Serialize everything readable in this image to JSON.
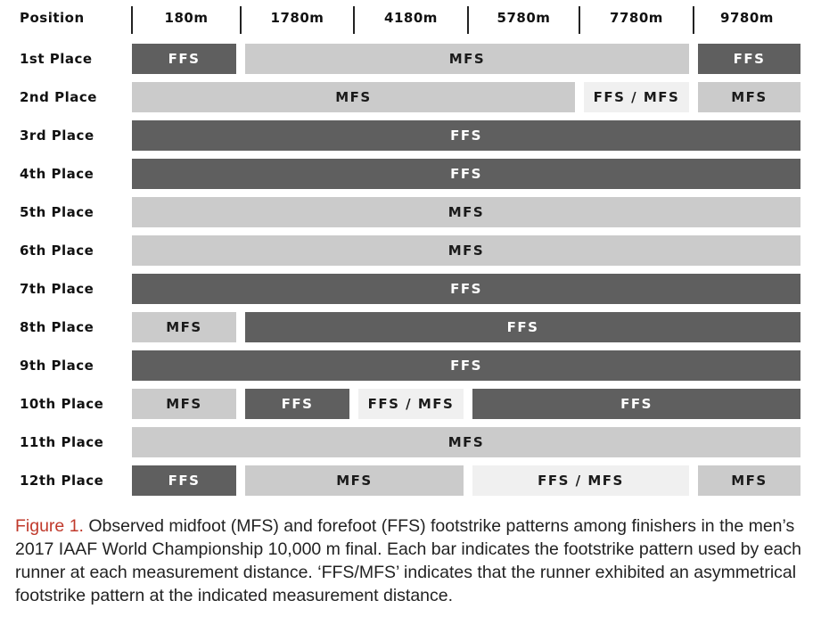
{
  "header": {
    "position_label": "Position",
    "distances": [
      "180m",
      "1780m",
      "4180m",
      "5780m",
      "7780m",
      "9780m"
    ]
  },
  "rows": [
    {
      "label": "1st Place",
      "segments": [
        {
          "text": "FFS",
          "kind": "FFS",
          "from": 0,
          "to": 1
        },
        {
          "text": "MFS",
          "kind": "MFS",
          "from": 1,
          "to": 5
        },
        {
          "text": "FFS",
          "kind": "FFS",
          "from": 5,
          "to": 6
        }
      ]
    },
    {
      "label": "2nd Place",
      "segments": [
        {
          "text": "MFS",
          "kind": "MFS",
          "from": 0,
          "to": 4
        },
        {
          "text": "FFS / MFS",
          "kind": "MIX",
          "from": 4,
          "to": 5
        },
        {
          "text": "MFS",
          "kind": "MFS",
          "from": 5,
          "to": 6
        }
      ]
    },
    {
      "label": "3rd Place",
      "segments": [
        {
          "text": "FFS",
          "kind": "FFS",
          "from": 0,
          "to": 6
        }
      ]
    },
    {
      "label": "4th Place",
      "segments": [
        {
          "text": "FFS",
          "kind": "FFS",
          "from": 0,
          "to": 6
        }
      ]
    },
    {
      "label": "5th Place",
      "segments": [
        {
          "text": "MFS",
          "kind": "MFS",
          "from": 0,
          "to": 6
        }
      ]
    },
    {
      "label": "6th Place",
      "segments": [
        {
          "text": "MFS",
          "kind": "MFS",
          "from": 0,
          "to": 6
        }
      ]
    },
    {
      "label": "7th Place",
      "segments": [
        {
          "text": "FFS",
          "kind": "FFS",
          "from": 0,
          "to": 6
        }
      ]
    },
    {
      "label": "8th Place",
      "segments": [
        {
          "text": "MFS",
          "kind": "MFS",
          "from": 0,
          "to": 1
        },
        {
          "text": "FFS",
          "kind": "FFS",
          "from": 1,
          "to": 6
        }
      ]
    },
    {
      "label": "9th Place",
      "segments": [
        {
          "text": "FFS",
          "kind": "FFS",
          "from": 0,
          "to": 6
        }
      ]
    },
    {
      "label": "10th Place",
      "segments": [
        {
          "text": "MFS",
          "kind": "MFS",
          "from": 0,
          "to": 1
        },
        {
          "text": "FFS",
          "kind": "FFS",
          "from": 1,
          "to": 2
        },
        {
          "text": "FFS / MFS",
          "kind": "MIX",
          "from": 2,
          "to": 3
        },
        {
          "text": "FFS",
          "kind": "FFS",
          "from": 3,
          "to": 6
        }
      ]
    },
    {
      "label": "11th Place",
      "segments": [
        {
          "text": "MFS",
          "kind": "MFS",
          "from": 0,
          "to": 6
        }
      ]
    },
    {
      "label": "12th Place",
      "segments": [
        {
          "text": "FFS",
          "kind": "FFS",
          "from": 0,
          "to": 1
        },
        {
          "text": "MFS",
          "kind": "MFS",
          "from": 1,
          "to": 3
        },
        {
          "text": "FFS / MFS",
          "kind": "MIX",
          "from": 3,
          "to": 5
        },
        {
          "text": "MFS",
          "kind": "MFS",
          "from": 5,
          "to": 6
        }
      ]
    }
  ],
  "colors": {
    "FFS": "#5f5f5f",
    "MFS": "#cbcbcb",
    "MIX": "#f0f0f0",
    "caption_label": "#c0392b"
  },
  "caption": {
    "label": "Figure 1.",
    "text": " Observed midfoot (MFS) and forefoot (FFS) footstrike patterns among finishers in the men’s 2017 IAAF World Championship 10,000 m final. Each bar indicates the footstrike pattern used by each runner at each measurement distance. ‘FFS/MFS’ indicates that the runner exhibited an asymmetrical footstrike pattern at the indicated measurement distance."
  }
}
